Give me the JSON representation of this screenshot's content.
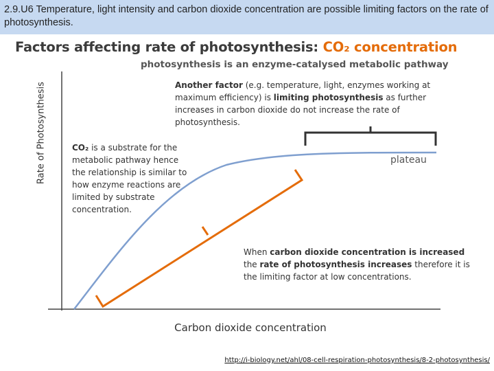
{
  "header": {
    "title": "2.9.U6 Temperature, light intensity and carbon dioxide concentration are possible limiting factors on the rate of photosynthesis."
  },
  "slide": {
    "title": "Factors affecting rate of photosynthesis: ",
    "title_highlight": "CO₂ concentration",
    "subtitle": "photosynthesis is an enzyme-catalysed metabolic pathway",
    "note_top": [
      {
        "text": "Another factor",
        "bold": true
      },
      {
        "text": " (e.g. temperature, light, enzymes working at maximum efficiency) is ",
        "bold": false
      },
      {
        "text": "limiting photosynthesis",
        "bold": true
      },
      {
        "text": " as further increases in carbon dioxide do not increase the rate of photosynthesis.",
        "bold": false
      }
    ],
    "note_left": [
      {
        "text": "CO₂",
        "bold": true
      },
      {
        "text": " is a substrate for the metabolic pathway hence the relationship is similar to how enzyme reactions are limited by substrate concentration.",
        "bold": false
      }
    ],
    "note_bottom": [
      {
        "text": "When ",
        "bold": false
      },
      {
        "text": "carbon dioxide concentration is increased",
        "bold": true
      },
      {
        "text": " the ",
        "bold": false
      },
      {
        "text": "rate of photosynthesis increases",
        "bold": true
      },
      {
        "text": " therefore it is the limiting factor at low concentrations.",
        "bold": false
      }
    ],
    "plateau_label": "plateau",
    "y_axis_label": "Rate of Photosynthesis",
    "x_axis_label": "Carbon dioxide concentration",
    "source_link": "http://i-biology.net/ahl/08-cell-respiration-photosynthesis/8-2-photosynthesis/"
  }
}
